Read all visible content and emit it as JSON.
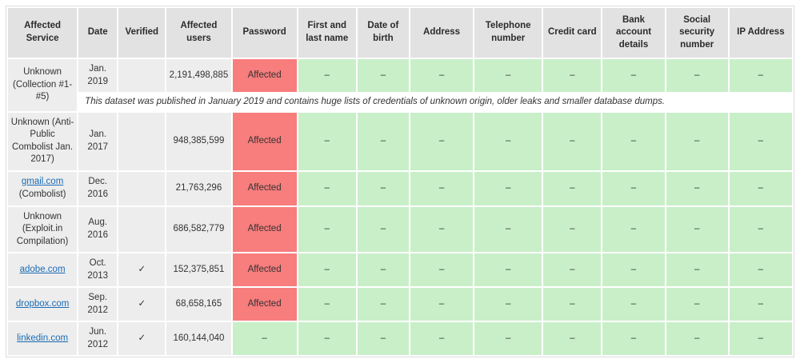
{
  "colors": {
    "header_bg": "#e2e2e2",
    "label_bg": "#ededed",
    "safe_bg": "#c9efc9",
    "affected_bg": "#f87d7d",
    "link_color": "#1a6bb5"
  },
  "symbols": {
    "dash": "–",
    "check": "✓"
  },
  "table": {
    "columns": [
      "Affected Service",
      "Date",
      "Verified",
      "Affected users",
      "Password",
      "First and last name",
      "Date of birth",
      "Address",
      "Telephone number",
      "Credit card",
      "Bank account details",
      "Social security number",
      "IP Address"
    ],
    "rows": [
      {
        "service_link": "",
        "service_text": "Unknown (Collection #1-#5)",
        "date": "Jan. 2019",
        "verified": "",
        "users": "2,191,498,885",
        "password": "Affected",
        "affected": true,
        "note": "This dataset was published in January 2019 and contains huge lists of credentials of unknown origin, older leaks and smaller database dumps."
      },
      {
        "service_link": "",
        "service_text": "Unknown (Anti-Public Combolist Jan. 2017)",
        "date": "Jan. 2017",
        "verified": "",
        "users": "948,385,599",
        "password": "Affected",
        "affected": true
      },
      {
        "service_link": "gmail.com",
        "service_text": "(Combolist)",
        "date": "Dec. 2016",
        "verified": "",
        "users": "21,763,296",
        "password": "Affected",
        "affected": true
      },
      {
        "service_link": "",
        "service_text": "Unknown (Exploit.in Compilation)",
        "date": "Aug. 2016",
        "verified": "",
        "users": "686,582,779",
        "password": "Affected",
        "affected": true
      },
      {
        "service_link": "adobe.com",
        "service_text": "",
        "date": "Oct. 2013",
        "verified": "✓",
        "users": "152,375,851",
        "password": "Affected",
        "affected": true
      },
      {
        "service_link": "dropbox.com",
        "service_text": "",
        "date": "Sep. 2012",
        "verified": "✓",
        "users": "68,658,165",
        "password": "Affected",
        "affected": true
      },
      {
        "service_link": "linkedin.com",
        "service_text": "",
        "date": "Jun. 2012",
        "verified": "✓",
        "users": "160,144,040",
        "password": "–",
        "affected": false
      }
    ]
  }
}
